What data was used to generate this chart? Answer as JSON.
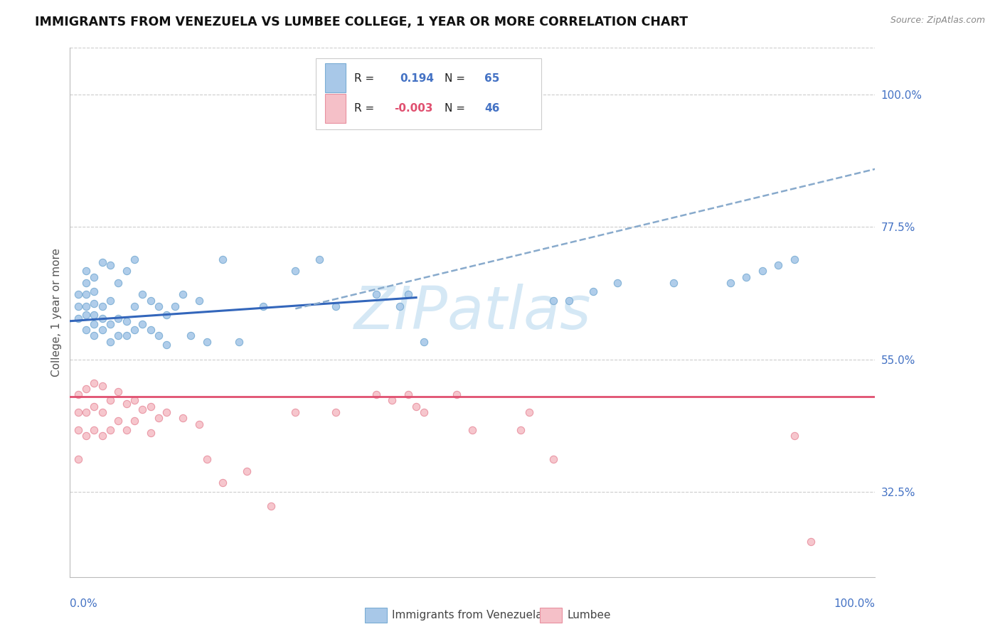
{
  "title": "IMMIGRANTS FROM VENEZUELA VS LUMBEE COLLEGE, 1 YEAR OR MORE CORRELATION CHART",
  "source": "Source: ZipAtlas.com",
  "ylabel": "College, 1 year or more",
  "ytick_labels": [
    "32.5%",
    "55.0%",
    "77.5%",
    "100.0%"
  ],
  "ytick_values": [
    0.325,
    0.55,
    0.775,
    1.0
  ],
  "xlim": [
    0.0,
    1.0
  ],
  "ylim": [
    0.18,
    1.08
  ],
  "blue_color_face": "#a8c8e8",
  "blue_color_edge": "#7aadd4",
  "pink_color_face": "#f5c0c8",
  "pink_color_edge": "#e890a0",
  "trend_blue_solid": "#3366bb",
  "trend_blue_dash": "#88aacc",
  "trend_pink": "#e05070",
  "watermark_color": "#d5e8f5",
  "blue_trend_solid_x0": 0.0,
  "blue_trend_solid_x1": 0.43,
  "blue_trend_solid_y0": 0.615,
  "blue_trend_solid_y1": 0.655,
  "blue_trend_dash_x0": 0.28,
  "blue_trend_dash_x1": 1.02,
  "blue_trend_dash_y0": 0.636,
  "blue_trend_dash_y1": 0.88,
  "pink_trend_y": 0.487,
  "blue_pts_x": [
    0.01,
    0.01,
    0.01,
    0.02,
    0.02,
    0.02,
    0.02,
    0.02,
    0.02,
    0.03,
    0.03,
    0.03,
    0.03,
    0.03,
    0.03,
    0.04,
    0.04,
    0.04,
    0.04,
    0.05,
    0.05,
    0.05,
    0.05,
    0.06,
    0.06,
    0.06,
    0.07,
    0.07,
    0.07,
    0.08,
    0.08,
    0.08,
    0.09,
    0.09,
    0.1,
    0.1,
    0.11,
    0.11,
    0.12,
    0.12,
    0.13,
    0.14,
    0.15,
    0.16,
    0.17,
    0.19,
    0.21,
    0.24,
    0.28,
    0.31,
    0.33,
    0.38,
    0.41,
    0.42,
    0.44,
    0.6,
    0.62,
    0.65,
    0.68,
    0.75,
    0.82,
    0.84,
    0.86,
    0.88,
    0.9
  ],
  "blue_pts_y": [
    0.62,
    0.64,
    0.66,
    0.6,
    0.625,
    0.64,
    0.66,
    0.68,
    0.7,
    0.59,
    0.61,
    0.625,
    0.645,
    0.665,
    0.69,
    0.6,
    0.62,
    0.64,
    0.715,
    0.58,
    0.61,
    0.65,
    0.71,
    0.59,
    0.62,
    0.68,
    0.59,
    0.615,
    0.7,
    0.6,
    0.64,
    0.72,
    0.61,
    0.66,
    0.6,
    0.65,
    0.59,
    0.64,
    0.575,
    0.625,
    0.64,
    0.66,
    0.59,
    0.65,
    0.58,
    0.72,
    0.58,
    0.64,
    0.7,
    0.72,
    0.64,
    0.66,
    0.64,
    0.66,
    0.58,
    0.65,
    0.65,
    0.665,
    0.68,
    0.68,
    0.68,
    0.69,
    0.7,
    0.71,
    0.72
  ],
  "pink_pts_x": [
    0.01,
    0.01,
    0.01,
    0.01,
    0.02,
    0.02,
    0.02,
    0.03,
    0.03,
    0.03,
    0.04,
    0.04,
    0.04,
    0.05,
    0.05,
    0.06,
    0.06,
    0.07,
    0.07,
    0.08,
    0.08,
    0.09,
    0.1,
    0.1,
    0.11,
    0.12,
    0.14,
    0.16,
    0.17,
    0.19,
    0.22,
    0.25,
    0.28,
    0.33,
    0.38,
    0.4,
    0.42,
    0.43,
    0.44,
    0.48,
    0.5,
    0.56,
    0.57,
    0.6,
    0.9,
    0.92
  ],
  "pink_pts_y": [
    0.43,
    0.46,
    0.49,
    0.38,
    0.42,
    0.46,
    0.5,
    0.43,
    0.47,
    0.51,
    0.42,
    0.46,
    0.505,
    0.43,
    0.48,
    0.445,
    0.495,
    0.43,
    0.475,
    0.445,
    0.48,
    0.465,
    0.425,
    0.47,
    0.45,
    0.46,
    0.45,
    0.44,
    0.38,
    0.34,
    0.36,
    0.3,
    0.46,
    0.46,
    0.49,
    0.48,
    0.49,
    0.47,
    0.46,
    0.49,
    0.43,
    0.43,
    0.46,
    0.38,
    0.42,
    0.24
  ]
}
